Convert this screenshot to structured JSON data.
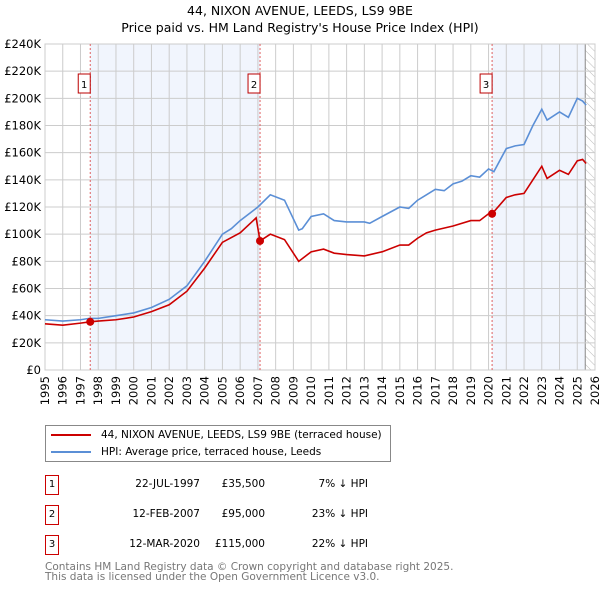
{
  "chart_data": {
    "type": "line",
    "title": "44, NIXON AVENUE, LEEDS, LS9 9BE",
    "subtitle": "Price paid vs. HM Land Registry's House Price Index (HPI)",
    "xlim": [
      1995,
      2026
    ],
    "ylim": [
      0,
      240000
    ],
    "y_ticks": [
      0,
      20000,
      40000,
      60000,
      80000,
      100000,
      120000,
      140000,
      160000,
      180000,
      200000,
      220000,
      240000
    ],
    "y_tick_labels": [
      "£0",
      "£20K",
      "£40K",
      "£60K",
      "£80K",
      "£100K",
      "£120K",
      "£140K",
      "£160K",
      "£180K",
      "£200K",
      "£220K",
      "£240K"
    ],
    "x_ticks": [
      1995,
      1996,
      1997,
      1998,
      1999,
      2000,
      2001,
      2002,
      2003,
      2004,
      2005,
      2006,
      2007,
      2008,
      2009,
      2010,
      2011,
      2012,
      2013,
      2014,
      2015,
      2016,
      2017,
      2018,
      2019,
      2020,
      2021,
      2022,
      2023,
      2024,
      2025,
      2026
    ],
    "grid": true,
    "series": [
      {
        "name": "44, NIXON AVENUE, LEEDS, LS9 9BE (terraced house)",
        "color": "#cc0000",
        "x": [
          1995,
          1996,
          1997,
          1997.55,
          1998,
          1999,
          2000,
          2001,
          2002,
          2003,
          2004,
          2005,
          2006,
          2006.9,
          2007.12,
          2007.7,
          2008.5,
          2009.3,
          2010,
          2010.7,
          2011.3,
          2012,
          2013,
          2014,
          2015,
          2015.5,
          2016,
          2016.5,
          2017,
          2018,
          2019,
          2019.5,
          2020,
          2020.2,
          2021,
          2021.5,
          2022,
          2022.5,
          2023,
          2023.3,
          2024,
          2024.5,
          2025,
          2025.3,
          2025.5
        ],
        "y": [
          34000,
          33000,
          34500,
          35500,
          36000,
          37000,
          39000,
          43000,
          48000,
          58000,
          75000,
          94000,
          101000,
          112000,
          95000,
          100000,
          96000,
          80000,
          87000,
          89000,
          86000,
          85000,
          84000,
          87000,
          92000,
          92000,
          97000,
          101000,
          103000,
          106000,
          110000,
          110000,
          115000,
          115000,
          127000,
          129000,
          130000,
          140000,
          150000,
          141000,
          147000,
          144000,
          154000,
          155000,
          152000
        ]
      },
      {
        "name": "HPI: Average price, terraced house, Leeds",
        "color": "#5b8fd6",
        "x": [
          1995,
          1996,
          1997,
          1997.5,
          1998,
          1999,
          2000,
          2001,
          2002,
          2003,
          2004,
          2005,
          2005.5,
          2006,
          2007,
          2007.7,
          2008.5,
          2009.3,
          2009.5,
          2010,
          2010.7,
          2011.3,
          2012,
          2013,
          2013.3,
          2014,
          2015,
          2015.5,
          2016,
          2016.5,
          2017,
          2017.5,
          2018,
          2018.5,
          2019,
          2019.5,
          2020,
          2020.3,
          2021,
          2021.5,
          2022,
          2022.5,
          2023,
          2023.3,
          2024,
          2024.5,
          2025,
          2025.3,
          2025.5
        ],
        "y": [
          37000,
          36000,
          37000,
          38000,
          38000,
          40000,
          42000,
          46000,
          52000,
          62000,
          80000,
          100000,
          104000,
          110000,
          120000,
          129000,
          125000,
          103000,
          104000,
          113000,
          115000,
          110000,
          109000,
          109000,
          108000,
          113000,
          120000,
          119000,
          125000,
          129000,
          133000,
          132000,
          137000,
          139000,
          143000,
          142000,
          148000,
          146000,
          163000,
          165000,
          166000,
          180000,
          192000,
          184000,
          190000,
          186000,
          200000,
          198000,
          195000
        ]
      }
    ],
    "sales": [
      {
        "label": "1",
        "date": "22-JUL-1997",
        "x": 1997.55,
        "price": 35500,
        "price_label": "£35,500",
        "hpi": "7% ↓ HPI"
      },
      {
        "label": "2",
        "date": "12-FEB-2007",
        "x": 2007.12,
        "price": 95000,
        "price_label": "£95,000",
        "hpi": "23% ↓ HPI"
      },
      {
        "label": "3",
        "date": "12-MAR-2020",
        "x": 2020.2,
        "price": 115000,
        "price_label": "£115,000",
        "hpi": "22% ↓ HPI"
      }
    ],
    "shaded_ranges": [
      [
        1997.55,
        2007.12
      ],
      [
        2020.2,
        2026
      ]
    ],
    "hatched_from": 2025.45,
    "legend_placement": "bottom"
  },
  "footer": {
    "line1": "Contains HM Land Registry data © Crown copyright and database right 2025.",
    "line2": "This data is licensed under the Open Government Licence v3.0."
  }
}
